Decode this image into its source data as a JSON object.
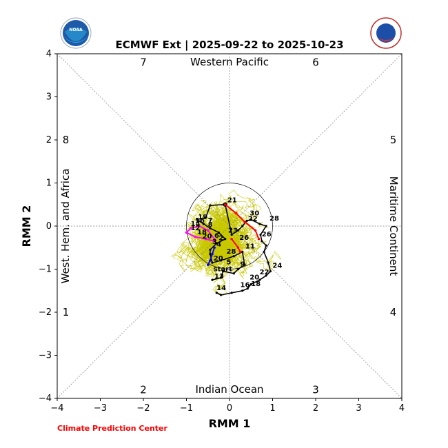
{
  "chart_data": {
    "type": "line",
    "title": "ECMWF Ext | 2025-09-22 to 2025-10-23",
    "xlabel": "RMM 1",
    "ylabel": "RMM 2",
    "xlim": [
      -4,
      4
    ],
    "ylim": [
      -4,
      4
    ],
    "xticks": [
      "−4",
      "−3",
      "−2",
      "−1",
      "0",
      "1",
      "2",
      "3",
      "4"
    ],
    "yticks": [
      "−4",
      "−3",
      "−2",
      "−1",
      "0",
      "1",
      "2",
      "3",
      "4"
    ],
    "regions": {
      "top": "Western Pacific",
      "bottom": "Indian Ocean",
      "left": "West. Hem. and Africa",
      "right": "Maritime Continent"
    },
    "phases": [
      {
        "label": "1",
        "x": -3.8,
        "y": -2.0
      },
      {
        "label": "2",
        "x": -2.0,
        "y": -3.8
      },
      {
        "label": "3",
        "x": 2.0,
        "y": -3.8
      },
      {
        "label": "4",
        "x": 3.8,
        "y": -2.0
      },
      {
        "label": "5",
        "x": 3.8,
        "y": 2.0
      },
      {
        "label": "6",
        "x": 2.0,
        "y": 3.8
      },
      {
        "label": "7",
        "x": -2.0,
        "y": 3.8
      },
      {
        "label": "8",
        "x": -3.8,
        "y": 2.0
      }
    ],
    "unit_circle_radius": 1,
    "colors": {
      "observed": "#000000",
      "ensemble": "#c8c800",
      "mean_1": "#ff0000",
      "mean_2": "#ff0000",
      "mean_3": "#0000ff",
      "mean_4": "#ff00ff",
      "credit": "#ff0000"
    },
    "observed": {
      "points": [
        [
          -0.3,
          -1.55
        ],
        [
          -0.2,
          -1.6
        ],
        [
          0.05,
          -1.55
        ],
        [
          0.3,
          -1.5
        ],
        [
          0.42,
          -1.45
        ],
        [
          0.5,
          -1.35
        ],
        [
          0.7,
          -1.25
        ],
        [
          0.85,
          -1.15
        ],
        [
          0.95,
          -1.05
        ],
        [
          0.9,
          -0.85
        ],
        [
          0.8,
          -0.6
        ],
        [
          0.85,
          -0.45
        ],
        [
          0.75,
          -0.35
        ],
        [
          0.72,
          -0.2
        ],
        [
          0.85,
          0.0
        ],
        [
          0.7,
          0.05
        ],
        [
          0.5,
          0.15
        ],
        [
          0.4,
          0.12
        ],
        [
          0.3,
          0.0
        ],
        [
          0.2,
          -0.1
        ],
        [
          0.05,
          -0.2
        ],
        [
          -0.1,
          0.5
        ],
        [
          -0.45,
          0.48
        ],
        [
          -0.55,
          0.2
        ],
        [
          -0.75,
          0.15
        ],
        [
          -0.6,
          0.05
        ],
        [
          -0.45,
          -0.05
        ],
        [
          -0.25,
          -0.15
        ],
        [
          -0.1,
          -0.3
        ],
        [
          -0.3,
          -0.4
        ],
        [
          -0.45,
          -0.55
        ],
        [
          -0.45,
          -0.65
        ],
        [
          -0.4,
          -0.85
        ],
        [
          -0.2,
          -0.8
        ],
        [
          0.1,
          -0.7
        ],
        [
          0.3,
          -0.6
        ],
        [
          0.35,
          -0.9
        ],
        [
          0.2,
          -1.0
        ],
        [
          0.1,
          -1.1
        ],
        [
          -0.15,
          -1.05
        ],
        [
          -0.2,
          -1.2
        ],
        [
          -0.4,
          -1.25
        ]
      ],
      "start": [
        -0.1,
        0.5
      ],
      "day_labels": [
        {
          "t": "21",
          "x": -0.1,
          "y": 0.52
        },
        {
          "t": "30",
          "x": 0.42,
          "y": 0.22
        },
        {
          "t": "22",
          "x": 0.38,
          "y": 0.09
        },
        {
          "t": "28",
          "x": 0.88,
          "y": 0.1
        },
        {
          "t": "26",
          "x": 0.7,
          "y": -0.27
        },
        {
          "t": "26",
          "x": 0.18,
          "y": -0.35
        },
        {
          "t": "11",
          "x": 0.32,
          "y": -0.55
        },
        {
          "t": "23",
          "x": -0.08,
          "y": -0.18
        },
        {
          "t": "28",
          "x": -0.12,
          "y": -0.67
        },
        {
          "t": "5",
          "x": -0.12,
          "y": -0.92
        },
        {
          "t": "9",
          "x": 0.2,
          "y": -0.97
        },
        {
          "t": "24",
          "x": 0.95,
          "y": -1.0
        },
        {
          "t": "22",
          "x": 0.65,
          "y": -1.15
        },
        {
          "t": "20",
          "x": 0.42,
          "y": -1.27
        },
        {
          "t": "18",
          "x": 0.45,
          "y": -1.42
        },
        {
          "t": "16",
          "x": 0.2,
          "y": -1.45
        },
        {
          "t": "14",
          "x": -0.35,
          "y": -1.52
        },
        {
          "t": "13",
          "x": -0.4,
          "y": -1.25
        },
        {
          "t": "start",
          "x": -0.42,
          "y": -1.08
        },
        {
          "t": "20",
          "x": -0.42,
          "y": -0.83
        },
        {
          "t": "19",
          "x": -0.78,
          "y": 0.13
        },
        {
          "t": "7",
          "x": -0.55,
          "y": 0.05
        },
        {
          "t": "8",
          "x": -0.55,
          "y": -0.05
        },
        {
          "t": "16",
          "x": -0.85,
          "y": 0.05
        },
        {
          "t": "14",
          "x": -0.95,
          "y": -0.03
        },
        {
          "t": "12",
          "x": -0.95,
          "y": -0.13
        },
        {
          "t": "18",
          "x": -0.8,
          "y": -0.22
        },
        {
          "t": "20",
          "x": -0.68,
          "y": -0.32
        },
        {
          "t": "6",
          "x": -0.4,
          "y": -0.3
        },
        {
          "t": "2",
          "x": -0.3,
          "y": -0.36
        },
        {
          "t": "3",
          "x": -0.45,
          "y": -0.45
        },
        {
          "t": "4",
          "x": -0.35,
          "y": -0.5
        }
      ]
    },
    "ensemble_mean": {
      "red_segment": [
        [
          -0.1,
          0.5
        ],
        [
          0.15,
          0.3
        ],
        [
          0.35,
          0.1
        ],
        [
          0.6,
          -0.1
        ],
        [
          0.68,
          -0.3
        ]
      ],
      "red_segment_2": [
        [
          0.05,
          -0.3
        ],
        [
          0.2,
          -0.5
        ],
        [
          0.25,
          -0.6
        ]
      ],
      "blue_segment": [
        [
          -0.35,
          -0.5
        ],
        [
          -0.4,
          -0.65
        ],
        [
          -0.45,
          -0.8
        ],
        [
          -0.5,
          -0.9
        ]
      ],
      "magenta_segment": [
        [
          -0.35,
          -0.35
        ],
        [
          -0.55,
          -0.3
        ],
        [
          -0.8,
          -0.25
        ],
        [
          -1.0,
          -0.15
        ],
        [
          -0.9,
          -0.05
        ],
        [
          -0.7,
          0.0
        ],
        [
          -0.5,
          -0.1
        ],
        [
          -0.35,
          -0.3
        ]
      ]
    },
    "credit": "Climate Prediction Center"
  },
  "logos": {
    "left": "noaa-logo",
    "left_text": "NOAA",
    "right": "nws-logo",
    "right_text": "NATIONAL WEATHER SERVICE"
  }
}
